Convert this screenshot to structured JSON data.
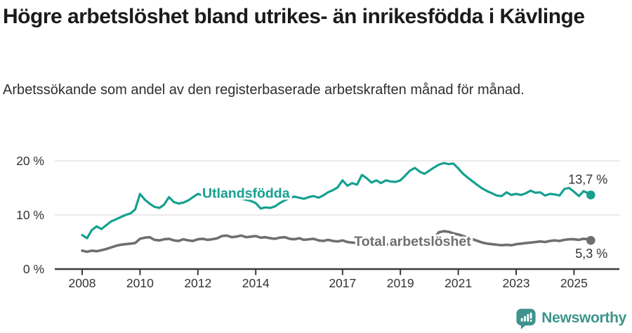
{
  "header": {
    "title": "Högre arbetslöshet bland utrikes- än inrikesfödda i Kävlinge",
    "subtitle": "Arbetssökande som andel av den registerbaserade arbetskraften månad för månad."
  },
  "chart_data": {
    "type": "line",
    "unit": "%",
    "grid": "horizontal",
    "legend": "inline-labels",
    "ylim": [
      0,
      20
    ],
    "x_range": [
      2008.0,
      2025.58
    ],
    "y_ticks": [
      {
        "value": 0,
        "label": "0 %"
      },
      {
        "value": 10,
        "label": "10 %"
      },
      {
        "value": 20,
        "label": "20 %"
      }
    ],
    "x_ticks": [
      {
        "value": 2008,
        "label": "2008"
      },
      {
        "value": 2010,
        "label": "2010"
      },
      {
        "value": 2012,
        "label": "2012"
      },
      {
        "value": 2014,
        "label": "2014"
      },
      {
        "value": 2017,
        "label": "2017"
      },
      {
        "value": 2019,
        "label": "2019"
      },
      {
        "value": 2021,
        "label": "2021"
      },
      {
        "value": 2023,
        "label": "2023"
      },
      {
        "value": 2025,
        "label": "2025"
      }
    ],
    "x": [
      2008.0,
      2008.17,
      2008.33,
      2008.5,
      2008.67,
      2008.83,
      2009.0,
      2009.17,
      2009.33,
      2009.5,
      2009.67,
      2009.83,
      2010.0,
      2010.17,
      2010.33,
      2010.5,
      2010.67,
      2010.83,
      2011.0,
      2011.17,
      2011.33,
      2011.5,
      2011.67,
      2011.83,
      2012.0,
      2012.17,
      2012.33,
      2012.5,
      2012.67,
      2012.83,
      2013.0,
      2013.17,
      2013.33,
      2013.5,
      2013.67,
      2013.83,
      2014.0,
      2014.17,
      2014.33,
      2014.5,
      2014.67,
      2014.83,
      2015.0,
      2015.17,
      2015.33,
      2015.5,
      2015.67,
      2015.83,
      2016.0,
      2016.17,
      2016.33,
      2016.5,
      2016.67,
      2016.83,
      2017.0,
      2017.17,
      2017.33,
      2017.5,
      2017.67,
      2017.83,
      2018.0,
      2018.17,
      2018.33,
      2018.5,
      2018.67,
      2018.83,
      2019.0,
      2019.17,
      2019.33,
      2019.5,
      2019.67,
      2019.83,
      2020.0,
      2020.17,
      2020.33,
      2020.5,
      2020.67,
      2020.83,
      2021.0,
      2021.17,
      2021.33,
      2021.5,
      2021.67,
      2021.83,
      2022.0,
      2022.17,
      2022.33,
      2022.5,
      2022.67,
      2022.83,
      2023.0,
      2023.17,
      2023.33,
      2023.5,
      2023.67,
      2023.83,
      2024.0,
      2024.17,
      2024.33,
      2024.5,
      2024.67,
      2024.83,
      2025.0,
      2025.17,
      2025.33,
      2025.5,
      2025.58
    ],
    "series": [
      {
        "name": "Utlandsfödda",
        "color": "#16a08f",
        "line_width": 3.2,
        "label_pos": {
          "x": 2012.15,
          "y": 13.2
        },
        "end_value": 13.7,
        "end_label": "13,7 %",
        "values": [
          6.3,
          5.7,
          7.2,
          7.9,
          7.4,
          8.1,
          8.8,
          9.2,
          9.6,
          10.0,
          10.3,
          11.0,
          13.9,
          12.8,
          12.1,
          11.5,
          11.3,
          11.9,
          13.3,
          12.4,
          12.1,
          12.3,
          12.7,
          13.3,
          13.9,
          13.6,
          14.4,
          14.1,
          13.6,
          13.8,
          13.8,
          13.5,
          13.2,
          13.0,
          12.8,
          12.6,
          12.2,
          11.2,
          11.4,
          11.3,
          11.6,
          12.2,
          12.7,
          13.1,
          13.4,
          13.2,
          13.0,
          13.3,
          13.5,
          13.2,
          13.6,
          14.2,
          14.6,
          15.1,
          16.4,
          15.4,
          15.9,
          15.6,
          17.4,
          16.8,
          16.0,
          16.4,
          15.9,
          16.4,
          16.2,
          16.1,
          16.4,
          17.3,
          18.2,
          18.7,
          18.0,
          17.6,
          18.2,
          18.8,
          19.3,
          19.6,
          19.4,
          19.5,
          18.6,
          17.6,
          16.9,
          16.2,
          15.5,
          14.9,
          14.4,
          14.0,
          13.6,
          13.5,
          14.2,
          13.7,
          13.9,
          13.7,
          14.0,
          14.5,
          14.1,
          14.2,
          13.6,
          13.9,
          13.8,
          13.6,
          14.8,
          15.0,
          14.3,
          13.5,
          14.4,
          14.0,
          13.7
        ]
      },
      {
        "name": "Total arbetslöshet",
        "color": "#6f6f6f",
        "line_width": 3.6,
        "label_pos": {
          "x": 2017.4,
          "y": 4.3
        },
        "end_value": 5.3,
        "end_label": "5,3 %",
        "values": [
          3.4,
          3.2,
          3.4,
          3.3,
          3.5,
          3.7,
          4.0,
          4.3,
          4.5,
          4.6,
          4.7,
          4.8,
          5.6,
          5.8,
          5.9,
          5.4,
          5.3,
          5.5,
          5.6,
          5.3,
          5.2,
          5.5,
          5.3,
          5.2,
          5.5,
          5.6,
          5.4,
          5.5,
          5.7,
          6.1,
          6.2,
          5.9,
          6.0,
          6.2,
          5.9,
          6.0,
          6.1,
          5.8,
          5.9,
          5.7,
          5.6,
          5.8,
          5.9,
          5.6,
          5.5,
          5.7,
          5.4,
          5.5,
          5.6,
          5.3,
          5.2,
          5.4,
          5.2,
          5.1,
          5.3,
          5.0,
          4.9,
          4.8,
          4.7,
          4.8,
          4.7,
          4.6,
          4.5,
          4.6,
          4.5,
          4.6,
          4.6,
          4.7,
          4.8,
          4.9,
          4.9,
          5.0,
          5.2,
          5.8,
          6.8,
          7.0,
          6.9,
          6.6,
          6.4,
          6.1,
          5.8,
          5.5,
          5.2,
          4.9,
          4.7,
          4.6,
          4.5,
          4.4,
          4.5,
          4.4,
          4.6,
          4.7,
          4.8,
          4.9,
          5.0,
          5.1,
          5.0,
          5.2,
          5.3,
          5.2,
          5.4,
          5.5,
          5.5,
          5.4,
          5.6,
          5.5,
          5.3
        ]
      }
    ],
    "colors": {
      "grid": "#e3e3e3",
      "axis": "#3a3a3a",
      "tick_label": "#333333",
      "annotation": "#333333"
    }
  },
  "footer": {
    "brand": "Newsworthy",
    "brand_color": "#3e948c",
    "logo_icon": "bar-chart-speech-bubble-icon"
  }
}
